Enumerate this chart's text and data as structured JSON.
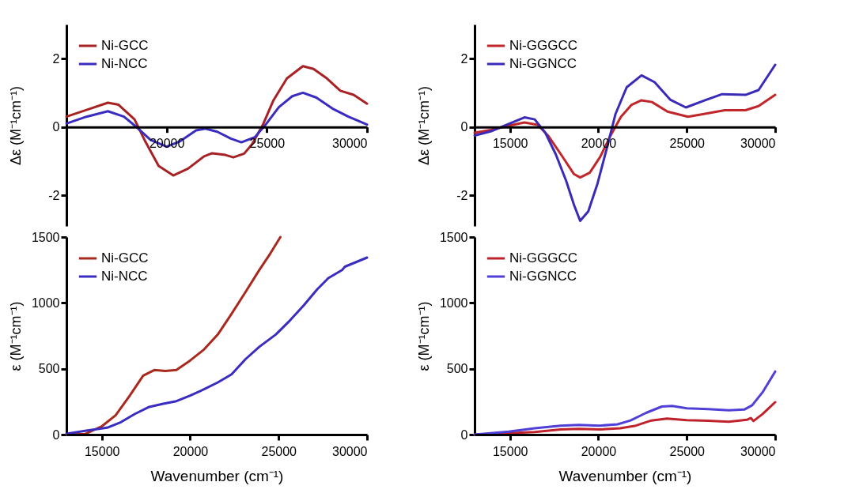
{
  "chart_data": [
    {
      "type": "line",
      "ylabel": "Δε (M⁻¹cm⁻¹)",
      "xlim": [
        15000,
        30000
      ],
      "xticks": [
        20000,
        25000,
        30000
      ],
      "ylim": [
        -2.9,
        3
      ],
      "yticks": [
        -2,
        0,
        2
      ],
      "legend": "top left",
      "grid": false,
      "x": [
        15000,
        16000,
        17070,
        17600,
        18400,
        18930,
        19600,
        20330,
        21070,
        21870,
        22270,
        22930,
        23330,
        23870,
        24270,
        24800,
        25330,
        26000,
        26800,
        27330,
        28000,
        28670,
        29330,
        30000
      ],
      "series": [
        {
          "name": "Ni-GCC",
          "color": "#a82225",
          "values": [
            0.3,
            0.5,
            0.71,
            0.65,
            0.22,
            -0.42,
            -1.14,
            -1.42,
            -1.22,
            -0.86,
            -0.77,
            -0.82,
            -0.89,
            -0.78,
            -0.5,
            0.06,
            0.78,
            1.42,
            1.78,
            1.7,
            1.42,
            1.06,
            0.94,
            0.68
          ]
        },
        {
          "name": "Ni-NCC",
          "color": "#3a2cc0",
          "x": [
            15000,
            16000,
            17070,
            17870,
            18530,
            19200,
            20000,
            20670,
            21470,
            21930,
            22530,
            23200,
            23730,
            24400,
            24930,
            25600,
            26270,
            26800,
            27470,
            28270,
            29070,
            30000
          ],
          "values": [
            0.1,
            0.3,
            0.46,
            0.3,
            -0.02,
            -0.38,
            -0.58,
            -0.42,
            -0.1,
            -0.05,
            -0.14,
            -0.34,
            -0.45,
            -0.3,
            0.06,
            0.58,
            0.9,
            1.0,
            0.86,
            0.54,
            0.3,
            0.07
          ]
        }
      ]
    },
    {
      "type": "line",
      "ylabel": "Δε (M⁻¹cm⁻¹)",
      "xlim": [
        13000,
        30000
      ],
      "xticks": [
        15000,
        20000,
        25000,
        30000
      ],
      "ylim": [
        -2.9,
        3
      ],
      "yticks": [
        -2,
        0,
        2
      ],
      "legend": "top left",
      "grid": false,
      "series": [
        {
          "name": "Ni-GGGCC",
          "color": "#c0262a",
          "x": [
            13000,
            13910,
            14790,
            15820,
            16560,
            17150,
            17880,
            18620,
            18970,
            19510,
            20100,
            20690,
            21280,
            21880,
            22440,
            23030,
            23910,
            25070,
            25970,
            27150,
            28320,
            29060,
            30000
          ],
          "values": [
            -0.17,
            -0.09,
            0.02,
            0.13,
            0.06,
            -0.25,
            -0.8,
            -1.38,
            -1.48,
            -1.34,
            -0.88,
            -0.25,
            0.3,
            0.65,
            0.78,
            0.73,
            0.45,
            0.3,
            0.38,
            0.49,
            0.49,
            0.61,
            0.94
          ]
        },
        {
          "name": "Ni-GGNCC",
          "color": "#3a2ab8",
          "x": [
            13000,
            13910,
            14790,
            15820,
            16400,
            17000,
            17590,
            18180,
            18620,
            18970,
            19430,
            19950,
            20470,
            20970,
            21600,
            22440,
            23180,
            24060,
            24950,
            25970,
            27000,
            28320,
            29060,
            30000
          ],
          "values": [
            -0.25,
            -0.13,
            0.06,
            0.28,
            0.22,
            -0.17,
            -0.8,
            -1.58,
            -2.28,
            -2.75,
            -2.47,
            -1.66,
            -0.64,
            0.38,
            1.16,
            1.51,
            1.31,
            0.8,
            0.57,
            0.77,
            0.96,
            0.94,
            1.08,
            1.82
          ]
        }
      ]
    },
    {
      "type": "line",
      "xlabel": "Wavenumber (cm⁻¹)",
      "ylabel": "ε (M⁻¹cm⁻¹)",
      "xlim": [
        13000,
        30000
      ],
      "xticks": [
        15000,
        20000,
        25000,
        30000
      ],
      "ylim": [
        0,
        1500
      ],
      "yticks": [
        0,
        500,
        1000,
        1500
      ],
      "legend": "top left",
      "grid": false,
      "series": [
        {
          "name": "Ni-GCC",
          "color": "#a82a1e",
          "x": [
            13000,
            14050,
            15000,
            15780,
            16560,
            17340,
            17970,
            18590,
            19220,
            20000,
            20780,
            21560,
            22340,
            23130,
            23910,
            24530,
            25100
          ],
          "values": [
            0,
            4,
            63,
            146,
            292,
            448,
            490,
            483,
            490,
            563,
            646,
            760,
            917,
            1083,
            1250,
            1375,
            1500
          ]
        },
        {
          "name": "Ni-NCC",
          "color": "#3a2cc0",
          "x": [
            13000,
            14200,
            15300,
            16080,
            16860,
            17640,
            18420,
            19220,
            20000,
            20780,
            21560,
            22340,
            23130,
            23910,
            24840,
            25630,
            26410,
            27190,
            27810,
            28590,
            28750,
            30000
          ],
          "values": [
            6,
            31,
            52,
            94,
            156,
            208,
            233,
            254,
            296,
            344,
            396,
            458,
            573,
            667,
            760,
            865,
            979,
            1104,
            1188,
            1250,
            1275,
            1344
          ]
        }
      ]
    },
    {
      "type": "line",
      "xlabel": "Wavenumber (cm⁻¹)",
      "ylabel": "ε (M⁻¹cm⁻¹)",
      "xlim": [
        13000,
        30000
      ],
      "xticks": [
        15000,
        20000,
        25000,
        30000
      ],
      "ylim": [
        0,
        1500
      ],
      "yticks": [
        0,
        500,
        1000,
        1500
      ],
      "legend": "top left",
      "grid": false,
      "series": [
        {
          "name": "Ni-GGGCC",
          "color": "#c0222c",
          "x": [
            13000,
            14930,
            16400,
            17870,
            18890,
            20070,
            21240,
            22120,
            23000,
            23880,
            25000,
            26200,
            27380,
            28400,
            28620,
            28770,
            29280,
            30000
          ],
          "values": [
            0,
            10,
            19,
            39,
            43,
            39,
            48,
            68,
            107,
            122,
            110,
            105,
            97,
            112,
            126,
            103,
            155,
            246
          ]
        },
        {
          "name": "Ni-GGNCC",
          "color": "#5040d8",
          "x": [
            13000,
            14930,
            16400,
            17870,
            18890,
            20070,
            21090,
            21820,
            22700,
            23590,
            24170,
            25000,
            26200,
            27380,
            28250,
            28700,
            29280,
            30000
          ],
          "values": [
            0,
            23,
            48,
            68,
            74,
            68,
            78,
            107,
            165,
            213,
            217,
            200,
            194,
            184,
            190,
            223,
            320,
            479
          ]
        }
      ]
    }
  ]
}
